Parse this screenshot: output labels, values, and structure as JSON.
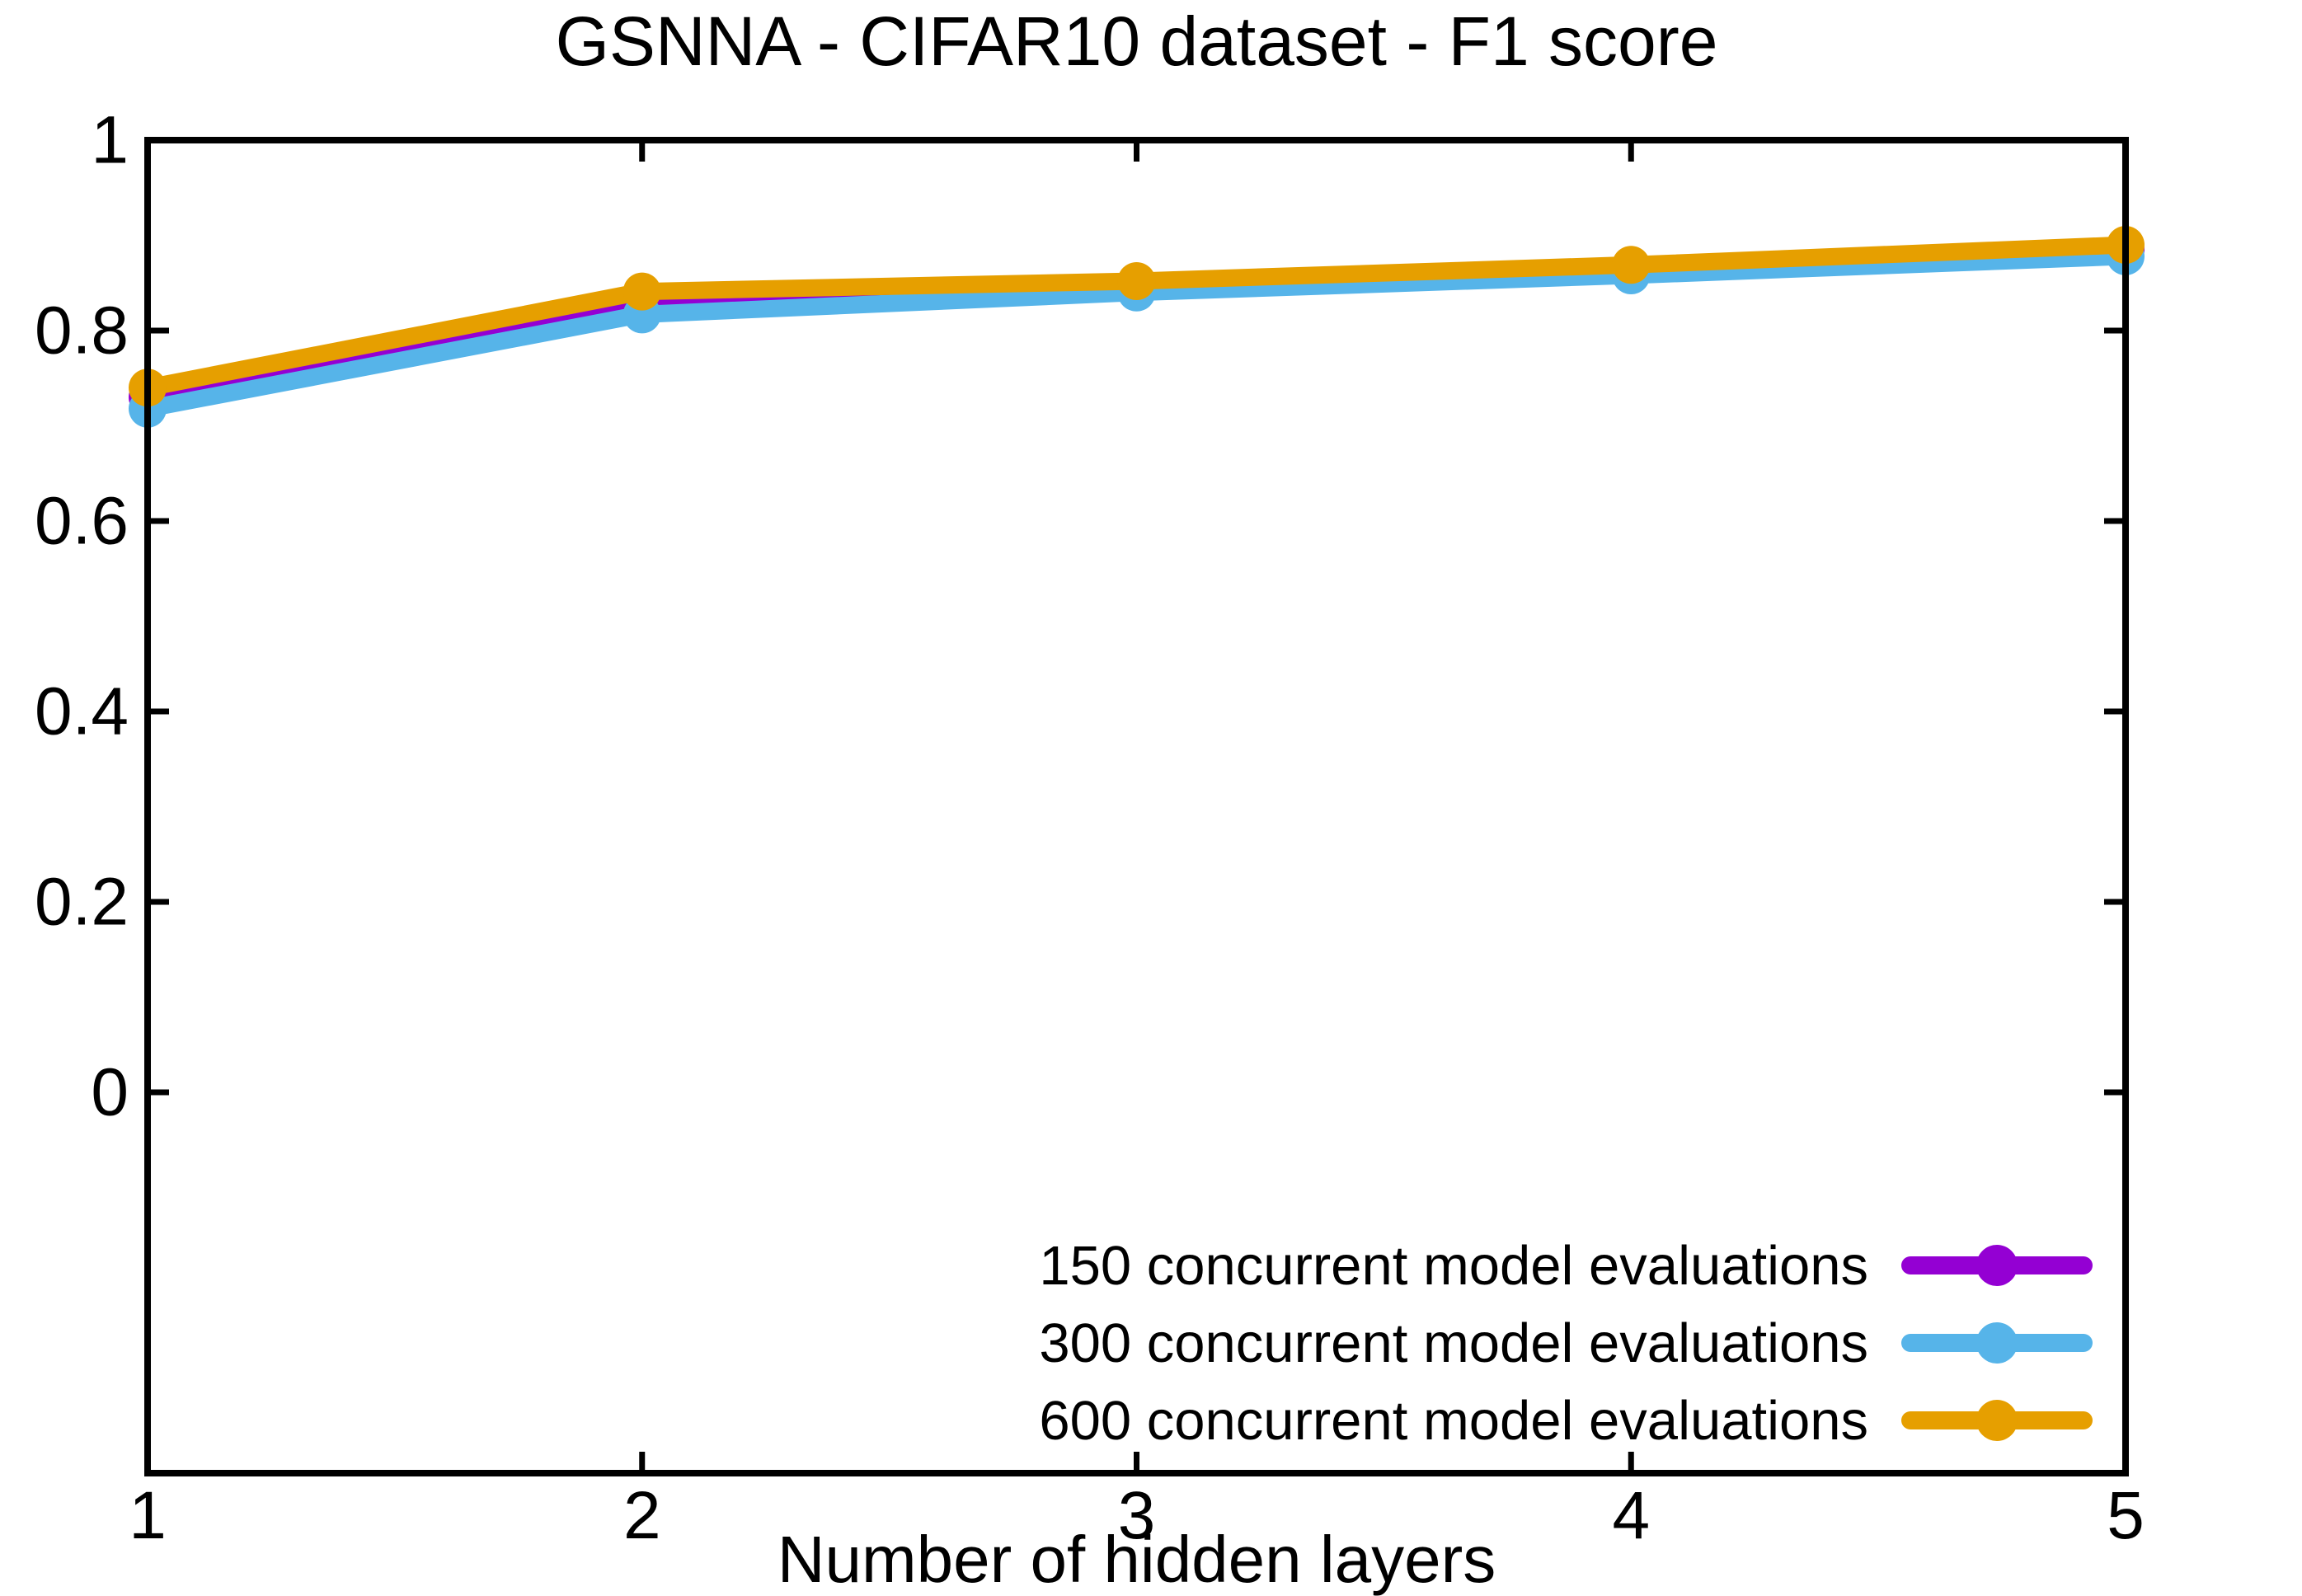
{
  "chart_data": {
    "type": "line",
    "title": "GSNNA - CIFAR10 dataset - F1 score",
    "xlabel": "Number of hidden layers",
    "ylabel": "",
    "x": [
      1,
      2,
      3,
      4,
      5
    ],
    "xlim": [
      1,
      5
    ],
    "ylim": [
      -0.4,
      1
    ],
    "xticks": [
      1,
      2,
      3,
      4,
      5
    ],
    "xtick_labels": [
      "1",
      "2",
      "3",
      "4",
      "5"
    ],
    "yticks": [
      0,
      0.2,
      0.4,
      0.6,
      0.8,
      1
    ],
    "ytick_labels": [
      "0",
      "0.2",
      "0.4",
      "0.6",
      "0.8",
      "1"
    ],
    "grid": false,
    "legend_position": "inside-bottom-right",
    "axis_color": "#000000",
    "background_color": "#ffffff",
    "series": [
      {
        "name": "150 concurrent model evaluations",
        "color": "#9400D3",
        "values": [
          0.73,
          0.83,
          0.845,
          0.861,
          0.885
        ]
      },
      {
        "name": "300 concurrent model evaluations",
        "color": "#56B4E9",
        "values": [
          0.718,
          0.817,
          0.84,
          0.858,
          0.878
        ]
      },
      {
        "name": "600 concurrent model evaluations",
        "color": "#E69F00",
        "values": [
          0.74,
          0.841,
          0.852,
          0.869,
          0.89
        ]
      }
    ]
  }
}
